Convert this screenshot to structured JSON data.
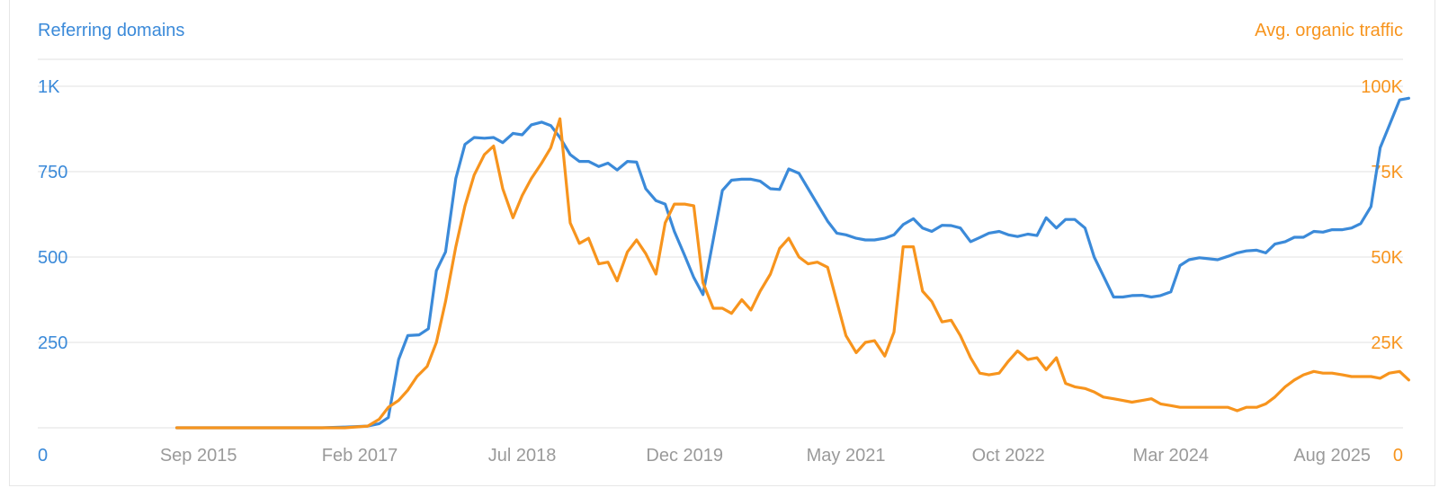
{
  "chart_data": {
    "type": "line",
    "left_axis_title": "Referring domains",
    "right_axis_title": "Avg. organic traffic",
    "left_ticks": [
      "0",
      "250",
      "500",
      "750",
      "1K"
    ],
    "right_ticks": [
      "0",
      "25K",
      "50K",
      "75K",
      "100K"
    ],
    "left_range": [
      0,
      1000
    ],
    "right_range": [
      0,
      100000
    ],
    "x_ticks": [
      {
        "label": "Sep 2015",
        "t": 2015.67
      },
      {
        "label": "Feb 2017",
        "t": 2017.08
      },
      {
        "label": "Jul 2018",
        "t": 2018.5
      },
      {
        "label": "Dec 2019",
        "t": 2019.92
      },
      {
        "label": "May 2021",
        "t": 2021.33
      },
      {
        "label": "Oct 2022",
        "t": 2022.75
      },
      {
        "label": "Mar 2024",
        "t": 2024.17
      },
      {
        "label": "Aug 2025",
        "t": 2025.58
      }
    ],
    "x_range": [
      2014.8,
      2026.2
    ],
    "grid": true,
    "colors": {
      "referring_domains": "#3b8ad9",
      "organic_traffic": "#f7941d",
      "grid": "#ececec",
      "x_label": "#9a9a9a"
    },
    "series": [
      {
        "name": "Referring domains",
        "axis": "left",
        "points": [
          [
            2015.48,
            0
          ],
          [
            2015.75,
            0
          ],
          [
            2016.0,
            0
          ],
          [
            2016.25,
            0
          ],
          [
            2016.5,
            0
          ],
          [
            2016.75,
            0
          ],
          [
            2016.95,
            2
          ],
          [
            2017.15,
            5
          ],
          [
            2017.25,
            12
          ],
          [
            2017.33,
            30
          ],
          [
            2017.42,
            200
          ],
          [
            2017.5,
            270
          ],
          [
            2017.6,
            272
          ],
          [
            2017.68,
            290
          ],
          [
            2017.75,
            460
          ],
          [
            2017.83,
            515
          ],
          [
            2017.92,
            730
          ],
          [
            2018.0,
            830
          ],
          [
            2018.08,
            850
          ],
          [
            2018.17,
            848
          ],
          [
            2018.25,
            850
          ],
          [
            2018.33,
            835
          ],
          [
            2018.42,
            862
          ],
          [
            2018.5,
            858
          ],
          [
            2018.58,
            887
          ],
          [
            2018.67,
            895
          ],
          [
            2018.75,
            885
          ],
          [
            2018.83,
            850
          ],
          [
            2018.92,
            800
          ],
          [
            2019.0,
            780
          ],
          [
            2019.08,
            780
          ],
          [
            2019.17,
            765
          ],
          [
            2019.25,
            775
          ],
          [
            2019.33,
            755
          ],
          [
            2019.42,
            780
          ],
          [
            2019.5,
            778
          ],
          [
            2019.58,
            700
          ],
          [
            2019.67,
            665
          ],
          [
            2019.75,
            655
          ],
          [
            2019.83,
            575
          ],
          [
            2019.92,
            505
          ],
          [
            2020.0,
            440
          ],
          [
            2020.08,
            390
          ],
          [
            2020.17,
            550
          ],
          [
            2020.25,
            695
          ],
          [
            2020.33,
            725
          ],
          [
            2020.42,
            728
          ],
          [
            2020.5,
            728
          ],
          [
            2020.58,
            722
          ],
          [
            2020.67,
            700
          ],
          [
            2020.75,
            698
          ],
          [
            2020.83,
            758
          ],
          [
            2020.92,
            745
          ],
          [
            2021.0,
            700
          ],
          [
            2021.08,
            655
          ],
          [
            2021.17,
            605
          ],
          [
            2021.25,
            570
          ],
          [
            2021.33,
            565
          ],
          [
            2021.42,
            555
          ],
          [
            2021.5,
            550
          ],
          [
            2021.58,
            550
          ],
          [
            2021.67,
            555
          ],
          [
            2021.75,
            565
          ],
          [
            2021.83,
            595
          ],
          [
            2021.92,
            612
          ],
          [
            2022.0,
            585
          ],
          [
            2022.08,
            575
          ],
          [
            2022.17,
            593
          ],
          [
            2022.25,
            592
          ],
          [
            2022.33,
            585
          ],
          [
            2022.42,
            545
          ],
          [
            2022.5,
            557
          ],
          [
            2022.58,
            570
          ],
          [
            2022.67,
            575
          ],
          [
            2022.75,
            565
          ],
          [
            2022.83,
            560
          ],
          [
            2022.92,
            567
          ],
          [
            2023.0,
            563
          ],
          [
            2023.08,
            615
          ],
          [
            2023.17,
            585
          ],
          [
            2023.25,
            610
          ],
          [
            2023.33,
            610
          ],
          [
            2023.42,
            585
          ],
          [
            2023.5,
            500
          ],
          [
            2023.58,
            445
          ],
          [
            2023.67,
            383
          ],
          [
            2023.75,
            383
          ],
          [
            2023.83,
            387
          ],
          [
            2023.92,
            388
          ],
          [
            2024.0,
            383
          ],
          [
            2024.08,
            387
          ],
          [
            2024.17,
            398
          ],
          [
            2024.25,
            475
          ],
          [
            2024.33,
            492
          ],
          [
            2024.42,
            498
          ],
          [
            2024.5,
            495
          ],
          [
            2024.58,
            492
          ],
          [
            2024.67,
            502
          ],
          [
            2024.75,
            512
          ],
          [
            2024.83,
            518
          ],
          [
            2024.92,
            520
          ],
          [
            2025.0,
            512
          ],
          [
            2025.08,
            538
          ],
          [
            2025.17,
            545
          ],
          [
            2025.25,
            558
          ],
          [
            2025.33,
            558
          ],
          [
            2025.42,
            575
          ],
          [
            2025.5,
            573
          ],
          [
            2025.58,
            580
          ],
          [
            2025.67,
            580
          ],
          [
            2025.75,
            585
          ],
          [
            2025.83,
            598
          ],
          [
            2025.92,
            648
          ],
          [
            2026.0,
            820
          ],
          [
            2026.08,
            885
          ],
          [
            2026.17,
            960
          ],
          [
            2026.25,
            965
          ]
        ]
      },
      {
        "name": "Avg. organic traffic",
        "axis": "right",
        "points": [
          [
            2015.48,
            0
          ],
          [
            2015.75,
            0
          ],
          [
            2016.0,
            0
          ],
          [
            2016.25,
            0
          ],
          [
            2016.5,
            0
          ],
          [
            2016.75,
            0
          ],
          [
            2016.95,
            0
          ],
          [
            2017.15,
            500
          ],
          [
            2017.25,
            2500
          ],
          [
            2017.33,
            6000
          ],
          [
            2017.42,
            8000
          ],
          [
            2017.5,
            11000
          ],
          [
            2017.58,
            15000
          ],
          [
            2017.67,
            18000
          ],
          [
            2017.75,
            25000
          ],
          [
            2017.83,
            37000
          ],
          [
            2017.92,
            53000
          ],
          [
            2018.0,
            65000
          ],
          [
            2018.08,
            74000
          ],
          [
            2018.17,
            80000
          ],
          [
            2018.25,
            82500
          ],
          [
            2018.33,
            70000
          ],
          [
            2018.42,
            61500
          ],
          [
            2018.5,
            68000
          ],
          [
            2018.58,
            73000
          ],
          [
            2018.67,
            77500
          ],
          [
            2018.75,
            82000
          ],
          [
            2018.83,
            90500
          ],
          [
            2018.92,
            60000
          ],
          [
            2019.0,
            54000
          ],
          [
            2019.08,
            55500
          ],
          [
            2019.17,
            48000
          ],
          [
            2019.25,
            48500
          ],
          [
            2019.33,
            43000
          ],
          [
            2019.42,
            51500
          ],
          [
            2019.5,
            55000
          ],
          [
            2019.58,
            51000
          ],
          [
            2019.67,
            45000
          ],
          [
            2019.75,
            60000
          ],
          [
            2019.83,
            65500
          ],
          [
            2019.92,
            65500
          ],
          [
            2020.0,
            65000
          ],
          [
            2020.08,
            42500
          ],
          [
            2020.17,
            35000
          ],
          [
            2020.25,
            35000
          ],
          [
            2020.33,
            33500
          ],
          [
            2020.42,
            37500
          ],
          [
            2020.5,
            34500
          ],
          [
            2020.58,
            40000
          ],
          [
            2020.67,
            45000
          ],
          [
            2020.75,
            52500
          ],
          [
            2020.83,
            55500
          ],
          [
            2020.92,
            50000
          ],
          [
            2021.0,
            48000
          ],
          [
            2021.08,
            48500
          ],
          [
            2021.17,
            47000
          ],
          [
            2021.25,
            37000
          ],
          [
            2021.33,
            27000
          ],
          [
            2021.42,
            22000
          ],
          [
            2021.5,
            25000
          ],
          [
            2021.58,
            25500
          ],
          [
            2021.67,
            21000
          ],
          [
            2021.75,
            28000
          ],
          [
            2021.83,
            53000
          ],
          [
            2021.92,
            53000
          ],
          [
            2022.0,
            40000
          ],
          [
            2022.08,
            37000
          ],
          [
            2022.17,
            31000
          ],
          [
            2022.25,
            31500
          ],
          [
            2022.33,
            27000
          ],
          [
            2022.42,
            20500
          ],
          [
            2022.5,
            16000
          ],
          [
            2022.58,
            15500
          ],
          [
            2022.67,
            16000
          ],
          [
            2022.75,
            19500
          ],
          [
            2022.83,
            22500
          ],
          [
            2022.92,
            20000
          ],
          [
            2023.0,
            20500
          ],
          [
            2023.08,
            17000
          ],
          [
            2023.17,
            20500
          ],
          [
            2023.25,
            13000
          ],
          [
            2023.33,
            12000
          ],
          [
            2023.42,
            11500
          ],
          [
            2023.5,
            10500
          ],
          [
            2023.58,
            9000
          ],
          [
            2023.67,
            8500
          ],
          [
            2023.75,
            8000
          ],
          [
            2023.83,
            7500
          ],
          [
            2023.92,
            8000
          ],
          [
            2024.0,
            8500
          ],
          [
            2024.08,
            7000
          ],
          [
            2024.17,
            6500
          ],
          [
            2024.25,
            6000
          ],
          [
            2024.33,
            6000
          ],
          [
            2024.42,
            6000
          ],
          [
            2024.5,
            6000
          ],
          [
            2024.58,
            6000
          ],
          [
            2024.67,
            6000
          ],
          [
            2024.75,
            5000
          ],
          [
            2024.83,
            6000
          ],
          [
            2024.92,
            6000
          ],
          [
            2025.0,
            7000
          ],
          [
            2025.08,
            9000
          ],
          [
            2025.17,
            12000
          ],
          [
            2025.25,
            14000
          ],
          [
            2025.33,
            15500
          ],
          [
            2025.42,
            16500
          ],
          [
            2025.5,
            16000
          ],
          [
            2025.58,
            16000
          ],
          [
            2025.67,
            15500
          ],
          [
            2025.75,
            15000
          ],
          [
            2025.83,
            15000
          ],
          [
            2025.92,
            15000
          ],
          [
            2026.0,
            14500
          ],
          [
            2026.08,
            16000
          ],
          [
            2026.17,
            16500
          ],
          [
            2026.25,
            14000
          ]
        ]
      }
    ]
  }
}
